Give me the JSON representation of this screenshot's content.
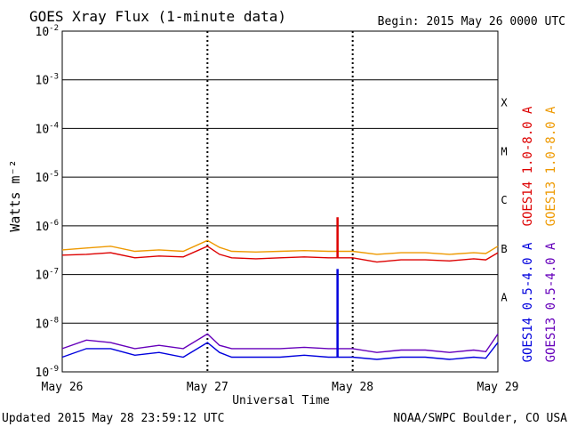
{
  "header": {
    "title": "GOES Xray Flux (1-minute data)",
    "begin": "Begin:  2015 May 26 0000 UTC"
  },
  "footer": {
    "updated": "Updated 2015 May 28 23:59:12 UTC",
    "credit": "NOAA/SWPC Boulder, CO USA"
  },
  "chart_data": {
    "type": "line",
    "title": "GOES Xray Flux (1-minute data)",
    "xlabel": "Universal Time",
    "ylabel": "Watts m⁻²",
    "y_scale": "log",
    "ylim": [
      1e-09,
      0.01
    ],
    "y_ticks": [
      {
        "value": 0.01,
        "base": "10",
        "exp": "-2"
      },
      {
        "value": 0.001,
        "base": "10",
        "exp": "-3"
      },
      {
        "value": 0.0001,
        "base": "10",
        "exp": "-4"
      },
      {
        "value": 1e-05,
        "base": "10",
        "exp": "-5"
      },
      {
        "value": 1e-06,
        "base": "10",
        "exp": "-6"
      },
      {
        "value": 1e-07,
        "base": "10",
        "exp": "-7"
      },
      {
        "value": 1e-08,
        "base": "10",
        "exp": "-8"
      },
      {
        "value": 1e-09,
        "base": "10",
        "exp": "-9"
      }
    ],
    "x_ticks": [
      "May 26",
      "May 27",
      "May 28",
      "May 29"
    ],
    "x": [
      "2015-05-26 00:00",
      "2015-05-26 04:00",
      "2015-05-26 08:00",
      "2015-05-26 12:00",
      "2015-05-26 16:00",
      "2015-05-26 20:00",
      "2015-05-27 00:00",
      "2015-05-27 02:00",
      "2015-05-27 04:00",
      "2015-05-27 08:00",
      "2015-05-27 12:00",
      "2015-05-27 16:00",
      "2015-05-27 20:00",
      "2015-05-28 00:00",
      "2015-05-28 04:00",
      "2015-05-28 08:00",
      "2015-05-28 12:00",
      "2015-05-28 16:00",
      "2015-05-28 20:00",
      "2015-05-28 22:00",
      "2015-05-29 00:00"
    ],
    "flare_classes": [
      {
        "label": "X",
        "value": 0.0001
      },
      {
        "label": "M",
        "value": 1e-05
      },
      {
        "label": "C",
        "value": 1e-06
      },
      {
        "label": "B",
        "value": 1e-07
      },
      {
        "label": "A",
        "value": 1e-08
      }
    ],
    "grid": true,
    "legend_position": "right, rotated",
    "series": [
      {
        "name": "GOES14 1.0-8.0 A",
        "color": "#dd0000",
        "values": [
          2.5e-07,
          2.6e-07,
          2.8e-07,
          2.2e-07,
          2.4e-07,
          2.3e-07,
          3.8e-07,
          2.6e-07,
          2.2e-07,
          2.1e-07,
          2.2e-07,
          2.3e-07,
          2.2e-07,
          2.2e-07,
          1.8e-07,
          2e-07,
          2e-07,
          1.9e-07,
          2.1e-07,
          2e-07,
          2.8e-07
        ]
      },
      {
        "name": "GOES13 1.0-8.0 A",
        "color": "#ee9900",
        "values": [
          3.2e-07,
          3.5e-07,
          3.8e-07,
          3e-07,
          3.2e-07,
          3e-07,
          5e-07,
          3.6e-07,
          3e-07,
          2.9e-07,
          3e-07,
          3.1e-07,
          3e-07,
          3e-07,
          2.6e-07,
          2.8e-07,
          2.8e-07,
          2.6e-07,
          2.8e-07,
          2.7e-07,
          3.8e-07
        ]
      },
      {
        "name": "GOES14 0.5-4.0 A",
        "color": "#0000dd",
        "values": [
          2e-09,
          3e-09,
          3e-09,
          2.2e-09,
          2.5e-09,
          2e-09,
          4e-09,
          2.5e-09,
          2e-09,
          2e-09,
          2e-09,
          2.2e-09,
          2e-09,
          2e-09,
          1.8e-09,
          2e-09,
          2e-09,
          1.8e-09,
          2e-09,
          1.9e-09,
          4e-09
        ]
      },
      {
        "name": "GOES13 0.5-4.0 A",
        "color": "#6600bb",
        "values": [
          3e-09,
          4.5e-09,
          4e-09,
          3e-09,
          3.5e-09,
          3e-09,
          6e-09,
          3.5e-09,
          3e-09,
          3e-09,
          3e-09,
          3.2e-09,
          3e-09,
          3e-09,
          2.5e-09,
          2.8e-09,
          2.8e-09,
          2.5e-09,
          2.8e-09,
          2.6e-09,
          6e-09
        ]
      }
    ],
    "events": [
      {
        "name": "GOES14 1.0-8.0 A",
        "time": "2015-05-27 21:30",
        "peak": 1.5e-06
      },
      {
        "name": "GOES14 0.5-4.0 A",
        "time": "2015-05-27 21:30",
        "peak": 1.3e-07
      }
    ]
  }
}
